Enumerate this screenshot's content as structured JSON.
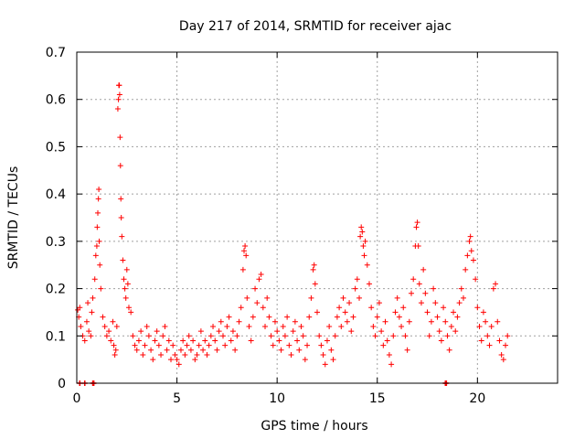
{
  "chart_data": {
    "type": "scatter",
    "title": "Day 217 of 2014, SRMTID for receiver ajac",
    "xlabel": "GPS time / hours",
    "ylabel": "SRMTID / TECUs",
    "xlim": [
      0,
      24
    ],
    "ylim": [
      0,
      0.7
    ],
    "xticks": [
      0,
      5,
      10,
      15,
      20
    ],
    "xtick_labels": [
      "0",
      "5",
      "10",
      "15",
      "20"
    ],
    "yticks": [
      0,
      0.1,
      0.2,
      0.3,
      0.4,
      0.5,
      0.6,
      0.7
    ],
    "ytick_labels": [
      "0",
      "0.1",
      "0.2",
      "0.3",
      "0.4",
      "0.5",
      "0.6",
      "0.7"
    ],
    "grid": true,
    "marker": "+",
    "color": "#ff0000",
    "series": [
      {
        "name": "SRMTID",
        "points": [
          [
            0.05,
            0.155
          ],
          [
            0.1,
            0.14
          ],
          [
            0.15,
            0.16
          ],
          [
            0.2,
            0.12
          ],
          [
            0.3,
            0.1
          ],
          [
            0.4,
            0.09
          ],
          [
            0.5,
            0.13
          ],
          [
            0.55,
            0.17
          ],
          [
            0.6,
            0.11
          ],
          [
            0.7,
            0.1
          ],
          [
            0.75,
            0.15
          ],
          [
            0.8,
            0.18
          ],
          [
            0.9,
            0.22
          ],
          [
            0.95,
            0.27
          ],
          [
            1.0,
            0.29
          ],
          [
            1.02,
            0.33
          ],
          [
            1.05,
            0.36
          ],
          [
            1.08,
            0.39
          ],
          [
            1.1,
            0.41
          ],
          [
            1.12,
            0.3
          ],
          [
            1.15,
            0.25
          ],
          [
            1.2,
            0.2
          ],
          [
            1.3,
            0.14
          ],
          [
            1.4,
            0.12
          ],
          [
            1.5,
            0.1
          ],
          [
            1.6,
            0.11
          ],
          [
            1.7,
            0.09
          ],
          [
            1.8,
            0.13
          ],
          [
            1.85,
            0.08
          ],
          [
            1.9,
            0.06
          ],
          [
            1.95,
            0.07
          ],
          [
            2.0,
            0.12
          ],
          [
            2.05,
            0.58
          ],
          [
            2.08,
            0.6
          ],
          [
            2.1,
            0.63
          ],
          [
            2.12,
            0.63
          ],
          [
            2.14,
            0.61
          ],
          [
            2.16,
            0.52
          ],
          [
            2.18,
            0.46
          ],
          [
            2.2,
            0.39
          ],
          [
            2.22,
            0.35
          ],
          [
            2.25,
            0.31
          ],
          [
            2.3,
            0.26
          ],
          [
            2.35,
            0.22
          ],
          [
            2.4,
            0.2
          ],
          [
            2.45,
            0.18
          ],
          [
            2.5,
            0.24
          ],
          [
            2.55,
            0.21
          ],
          [
            2.6,
            0.16
          ],
          [
            2.7,
            0.15
          ],
          [
            2.8,
            0.1
          ],
          [
            2.9,
            0.08
          ],
          [
            3.0,
            0.07
          ],
          [
            3.1,
            0.09
          ],
          [
            3.2,
            0.11
          ],
          [
            3.3,
            0.06
          ],
          [
            3.4,
            0.08
          ],
          [
            3.5,
            0.12
          ],
          [
            3.6,
            0.1
          ],
          [
            3.7,
            0.07
          ],
          [
            3.8,
            0.05
          ],
          [
            3.9,
            0.09
          ],
          [
            4.0,
            0.11
          ],
          [
            4.1,
            0.08
          ],
          [
            4.2,
            0.06
          ],
          [
            4.3,
            0.1
          ],
          [
            4.4,
            0.12
          ],
          [
            4.5,
            0.07
          ],
          [
            4.6,
            0.09
          ],
          [
            4.7,
            0.05
          ],
          [
            4.8,
            0.08
          ],
          [
            4.9,
            0.06
          ],
          [
            5.0,
            0.05
          ],
          [
            5.1,
            0.04
          ],
          [
            5.2,
            0.07
          ],
          [
            5.3,
            0.09
          ],
          [
            5.4,
            0.06
          ],
          [
            5.5,
            0.08
          ],
          [
            5.6,
            0.1
          ],
          [
            5.7,
            0.07
          ],
          [
            5.8,
            0.09
          ],
          [
            5.9,
            0.05
          ],
          [
            6.0,
            0.06
          ],
          [
            6.1,
            0.08
          ],
          [
            6.2,
            0.11
          ],
          [
            6.3,
            0.07
          ],
          [
            6.4,
            0.09
          ],
          [
            6.5,
            0.06
          ],
          [
            6.6,
            0.08
          ],
          [
            6.7,
            0.1
          ],
          [
            6.8,
            0.12
          ],
          [
            6.9,
            0.09
          ],
          [
            7.0,
            0.07
          ],
          [
            7.1,
            0.11
          ],
          [
            7.2,
            0.13
          ],
          [
            7.3,
            0.1
          ],
          [
            7.4,
            0.08
          ],
          [
            7.5,
            0.12
          ],
          [
            7.6,
            0.14
          ],
          [
            7.7,
            0.09
          ],
          [
            7.8,
            0.11
          ],
          [
            7.9,
            0.07
          ],
          [
            8.0,
            0.1
          ],
          [
            8.1,
            0.13
          ],
          [
            8.2,
            0.16
          ],
          [
            8.3,
            0.24
          ],
          [
            8.35,
            0.28
          ],
          [
            8.4,
            0.29
          ],
          [
            8.45,
            0.27
          ],
          [
            8.5,
            0.18
          ],
          [
            8.6,
            0.12
          ],
          [
            8.7,
            0.09
          ],
          [
            8.8,
            0.14
          ],
          [
            8.9,
            0.2
          ],
          [
            9.0,
            0.17
          ],
          [
            9.1,
            0.22
          ],
          [
            9.2,
            0.23
          ],
          [
            9.3,
            0.16
          ],
          [
            9.4,
            0.12
          ],
          [
            9.5,
            0.18
          ],
          [
            9.6,
            0.14
          ],
          [
            9.7,
            0.1
          ],
          [
            9.8,
            0.08
          ],
          [
            9.9,
            0.13
          ],
          [
            10.0,
            0.11
          ],
          [
            10.1,
            0.09
          ],
          [
            10.2,
            0.07
          ],
          [
            10.3,
            0.12
          ],
          [
            10.4,
            0.1
          ],
          [
            10.5,
            0.14
          ],
          [
            10.6,
            0.08
          ],
          [
            10.7,
            0.06
          ],
          [
            10.8,
            0.11
          ],
          [
            10.9,
            0.13
          ],
          [
            11.0,
            0.09
          ],
          [
            11.1,
            0.07
          ],
          [
            11.2,
            0.12
          ],
          [
            11.3,
            0.1
          ],
          [
            11.4,
            0.05
          ],
          [
            11.5,
            0.08
          ],
          [
            11.6,
            0.14
          ],
          [
            11.7,
            0.18
          ],
          [
            11.8,
            0.24
          ],
          [
            11.85,
            0.25
          ],
          [
            11.9,
            0.21
          ],
          [
            12.0,
            0.15
          ],
          [
            12.1,
            0.1
          ],
          [
            12.2,
            0.08
          ],
          [
            12.3,
            0.06
          ],
          [
            12.4,
            0.04
          ],
          [
            12.5,
            0.09
          ],
          [
            12.6,
            0.12
          ],
          [
            12.7,
            0.07
          ],
          [
            12.8,
            0.05
          ],
          [
            12.9,
            0.1
          ],
          [
            13.0,
            0.14
          ],
          [
            13.1,
            0.16
          ],
          [
            13.2,
            0.12
          ],
          [
            13.3,
            0.18
          ],
          [
            13.4,
            0.15
          ],
          [
            13.5,
            0.13
          ],
          [
            13.6,
            0.17
          ],
          [
            13.7,
            0.11
          ],
          [
            13.8,
            0.14
          ],
          [
            13.9,
            0.2
          ],
          [
            14.0,
            0.22
          ],
          [
            14.1,
            0.18
          ],
          [
            14.15,
            0.31
          ],
          [
            14.2,
            0.33
          ],
          [
            14.25,
            0.32
          ],
          [
            14.3,
            0.29
          ],
          [
            14.35,
            0.27
          ],
          [
            14.4,
            0.3
          ],
          [
            14.5,
            0.25
          ],
          [
            14.6,
            0.21
          ],
          [
            14.7,
            0.16
          ],
          [
            14.8,
            0.12
          ],
          [
            14.9,
            0.1
          ],
          [
            15.0,
            0.14
          ],
          [
            15.1,
            0.17
          ],
          [
            15.2,
            0.11
          ],
          [
            15.3,
            0.08
          ],
          [
            15.4,
            0.13
          ],
          [
            15.5,
            0.09
          ],
          [
            15.6,
            0.06
          ],
          [
            15.7,
            0.04
          ],
          [
            15.8,
            0.1
          ],
          [
            15.9,
            0.15
          ],
          [
            16.0,
            0.18
          ],
          [
            16.1,
            0.14
          ],
          [
            16.2,
            0.12
          ],
          [
            16.3,
            0.16
          ],
          [
            16.4,
            0.1
          ],
          [
            16.5,
            0.07
          ],
          [
            16.6,
            0.13
          ],
          [
            16.7,
            0.19
          ],
          [
            16.8,
            0.22
          ],
          [
            16.9,
            0.29
          ],
          [
            16.95,
            0.33
          ],
          [
            17.0,
            0.34
          ],
          [
            17.05,
            0.29
          ],
          [
            17.1,
            0.21
          ],
          [
            17.2,
            0.17
          ],
          [
            17.3,
            0.24
          ],
          [
            17.4,
            0.19
          ],
          [
            17.5,
            0.15
          ],
          [
            17.6,
            0.1
          ],
          [
            17.7,
            0.13
          ],
          [
            17.8,
            0.2
          ],
          [
            17.9,
            0.17
          ],
          [
            18.0,
            0.14
          ],
          [
            18.1,
            0.11
          ],
          [
            18.2,
            0.09
          ],
          [
            18.3,
            0.16
          ],
          [
            18.4,
            0.13
          ],
          [
            18.5,
            0.1
          ],
          [
            18.6,
            0.07
          ],
          [
            18.7,
            0.12
          ],
          [
            18.8,
            0.15
          ],
          [
            18.9,
            0.11
          ],
          [
            19.0,
            0.14
          ],
          [
            19.1,
            0.17
          ],
          [
            19.2,
            0.2
          ],
          [
            19.3,
            0.18
          ],
          [
            19.4,
            0.24
          ],
          [
            19.5,
            0.27
          ],
          [
            19.6,
            0.3
          ],
          [
            19.65,
            0.31
          ],
          [
            19.7,
            0.28
          ],
          [
            19.8,
            0.26
          ],
          [
            19.9,
            0.22
          ],
          [
            20.0,
            0.16
          ],
          [
            20.1,
            0.12
          ],
          [
            20.2,
            0.09
          ],
          [
            20.3,
            0.15
          ],
          [
            20.4,
            0.13
          ],
          [
            20.5,
            0.1
          ],
          [
            20.6,
            0.08
          ],
          [
            20.7,
            0.12
          ],
          [
            20.8,
            0.2
          ],
          [
            20.9,
            0.21
          ],
          [
            21.0,
            0.13
          ],
          [
            21.1,
            0.09
          ],
          [
            21.2,
            0.06
          ],
          [
            21.3,
            0.05
          ],
          [
            21.4,
            0.08
          ],
          [
            21.5,
            0.1
          ]
        ]
      }
    ],
    "zero_markers_x": [
      0.15,
      0.4,
      0.8,
      0.85,
      18.4,
      18.45
    ]
  }
}
